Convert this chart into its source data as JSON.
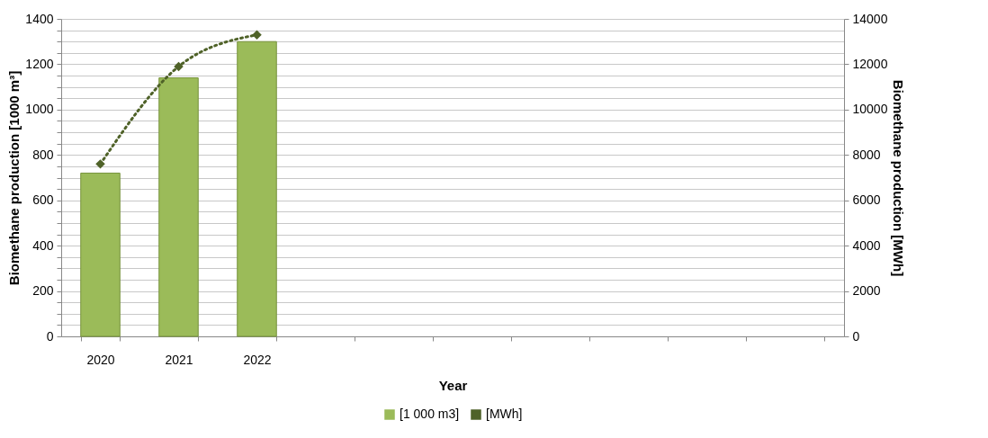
{
  "chart_data": {
    "type": "bar",
    "xlabel": "Year",
    "ylabel": "Biomethane production [1000 m³]",
    "y2label": "Biomethane production [MWh]",
    "categories": [
      "2020",
      "2021",
      "2022",
      null,
      null,
      null,
      null,
      null,
      null,
      null
    ],
    "series": [
      {
        "name": "[1 000 m3]",
        "color": "#9bbb59",
        "values": [
          720,
          1140,
          1300,
          null,
          null,
          null,
          null,
          null,
          null,
          null
        ]
      },
      {
        "name": "[MWh]",
        "type": "line",
        "axis": "y2",
        "color": "#4f6228",
        "marker": "diamond",
        "line_style": "dotted",
        "values": [
          7600,
          11900,
          13300,
          null,
          null,
          null,
          null,
          null,
          null,
          null
        ]
      }
    ],
    "ylim": [
      0,
      1400
    ],
    "yticks": [
      0,
      {
        "value": 50,
        "label": null
      },
      {
        "value": 100,
        "label": null
      },
      {
        "value": 150,
        "label": null
      },
      200,
      {
        "value": 250,
        "label": null
      },
      {
        "value": 300,
        "label": null
      },
      {
        "value": 350,
        "label": null
      },
      400,
      {
        "value": 450,
        "label": null
      },
      {
        "value": 500,
        "label": null
      },
      {
        "value": 550,
        "label": null
      },
      600,
      {
        "value": 650,
        "label": null
      },
      {
        "value": 700,
        "label": null
      },
      {
        "value": 750,
        "label": null
      },
      800,
      {
        "value": 850,
        "label": null
      },
      {
        "value": 900,
        "label": null
      },
      {
        "value": 950,
        "label": null
      },
      1000,
      {
        "value": 1050,
        "label": null
      },
      {
        "value": 1100,
        "label": null
      },
      {
        "value": 1150,
        "label": null
      },
      1200,
      {
        "value": 1250,
        "label": null
      },
      {
        "value": 1300,
        "label": null
      },
      {
        "value": 1350,
        "label": null
      },
      1400
    ],
    "y2lim": [
      0,
      14000
    ],
    "y2ticks": [
      0,
      2000,
      4000,
      6000,
      8000,
      10000,
      12000,
      14000
    ],
    "grid": "y",
    "legend": "bottom"
  }
}
